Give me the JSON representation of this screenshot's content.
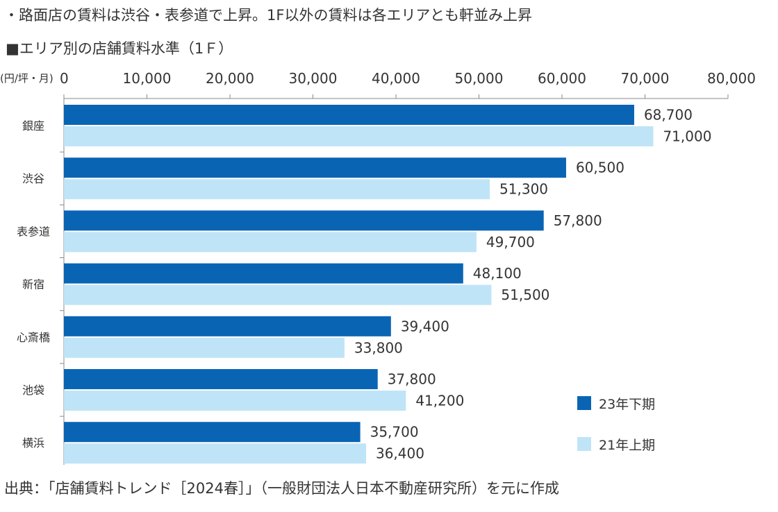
{
  "headline": "・路面店の賃料は渋谷・表参道で上昇。1F以外の賃料は各エリアとも軒並み上昇",
  "source": "出典：「店舗賃料トレンド［2024春］」（一般財団法人日本不動産研究所）を元に作成",
  "colors": {
    "series_dark": "#0a64b4",
    "series_light": "#bfe4f7",
    "axis": "#888888"
  },
  "chart_data": {
    "type": "bar",
    "orientation": "horizontal",
    "title": "■エリア別の店舗賃料水準（1Ｆ）",
    "unit_label": "(円/坪・月)",
    "xlim": [
      0,
      80000
    ],
    "x_ticks": [
      0,
      10000,
      20000,
      30000,
      40000,
      50000,
      60000,
      70000,
      80000
    ],
    "x_tick_labels": [
      "0",
      "10,000",
      "20,000",
      "30,000",
      "40,000",
      "50,000",
      "60,000",
      "70,000",
      "80,000"
    ],
    "categories": [
      "銀座",
      "渋谷",
      "表参道",
      "新宿",
      "心斎橋",
      "池袋",
      "横浜"
    ],
    "series": [
      {
        "name": "23年下期",
        "values": [
          68700,
          60500,
          57800,
          48100,
          39400,
          37800,
          35700
        ],
        "labels": [
          "68,700",
          "60,500",
          "57,800",
          "48,100",
          "39,400",
          "37,800",
          "35,700"
        ]
      },
      {
        "name": "21年上期",
        "values": [
          71000,
          51300,
          49700,
          51500,
          33800,
          41200,
          36400
        ],
        "labels": [
          "71,000",
          "51,300",
          "49,700",
          "51,500",
          "33,800",
          "41,200",
          "36,400"
        ]
      }
    ],
    "legend_position": "bottom-right",
    "grid": false
  }
}
